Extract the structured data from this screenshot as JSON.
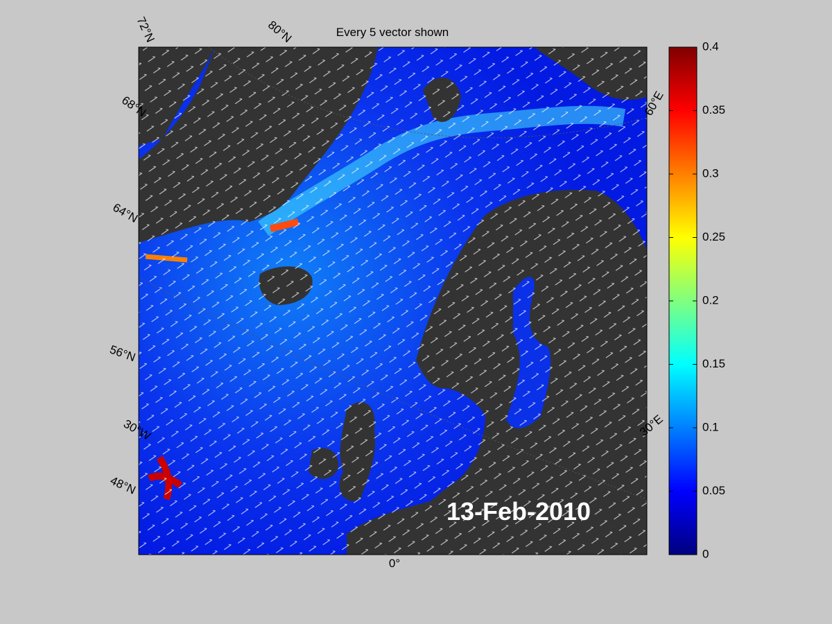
{
  "title": "Every 5 vector shown",
  "date_label": "13-Feb-2010",
  "graticule_labels": [
    "72°N",
    "80°N",
    "68°N",
    "64°N",
    "56°N",
    "30°W",
    "48°N",
    "0°",
    "30°E",
    "60°E"
  ],
  "colorbar": {
    "lim": [
      0,
      0.4
    ],
    "ticks": [
      0,
      0.05,
      0.1,
      0.15,
      0.2,
      0.25,
      0.3,
      0.35,
      0.4
    ],
    "colormap": "jet"
  }
}
